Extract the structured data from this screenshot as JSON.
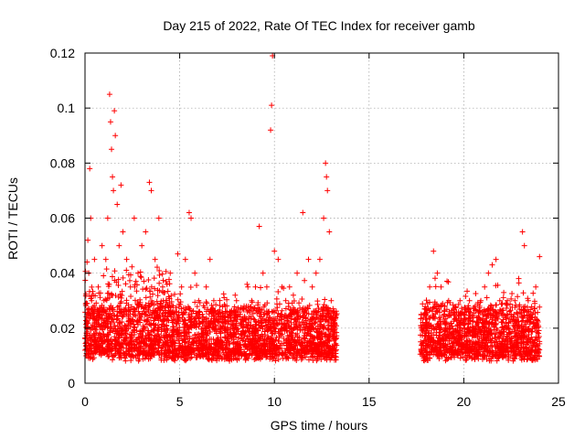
{
  "chart_data": {
    "type": "scatter",
    "title": "Day 215 of 2022, Rate Of TEC Index for receiver gamb",
    "xlabel": "GPS time / hours",
    "ylabel": "ROTI / TECUs",
    "xlim": [
      0,
      25
    ],
    "ylim": [
      0,
      0.12
    ],
    "xticks": [
      0,
      5,
      10,
      15,
      20,
      25
    ],
    "xtick_labels": [
      "0",
      "5",
      "10",
      "15",
      "20",
      "25"
    ],
    "yticks": [
      0,
      0.02,
      0.04,
      0.06,
      0.08,
      0.1,
      0.12
    ],
    "ytick_labels": [
      "0",
      "0.02",
      "0.04",
      "0.06",
      "0.08",
      "0.1",
      "0.12"
    ],
    "grid": true,
    "marker": "+",
    "color": "#ff0000",
    "coverage": [
      [
        0,
        13.3
      ],
      [
        17.7,
        24
      ]
    ],
    "series": [
      {
        "name": "ROTI",
        "points": [
          [
            0.0,
            0.012
          ],
          [
            0.1,
            0.018
          ],
          [
            0.15,
            0.052
          ],
          [
            0.2,
            0.04
          ],
          [
            0.25,
            0.078
          ],
          [
            0.3,
            0.06
          ],
          [
            0.35,
            0.03
          ],
          [
            0.4,
            0.02
          ],
          [
            0.5,
            0.045
          ],
          [
            0.6,
            0.015
          ],
          [
            0.7,
            0.035
          ],
          [
            0.8,
            0.025
          ],
          [
            0.9,
            0.05
          ],
          [
            1.0,
            0.03
          ],
          [
            1.1,
            0.045
          ],
          [
            1.2,
            0.06
          ],
          [
            1.3,
            0.105
          ],
          [
            1.35,
            0.095
          ],
          [
            1.4,
            0.085
          ],
          [
            1.45,
            0.075
          ],
          [
            1.5,
            0.07
          ],
          [
            1.55,
            0.099
          ],
          [
            1.6,
            0.09
          ],
          [
            1.7,
            0.065
          ],
          [
            1.8,
            0.05
          ],
          [
            1.9,
            0.072
          ],
          [
            2.0,
            0.055
          ],
          [
            2.2,
            0.045
          ],
          [
            2.4,
            0.035
          ],
          [
            2.6,
            0.06
          ],
          [
            2.8,
            0.04
          ],
          [
            3.0,
            0.05
          ],
          [
            3.2,
            0.055
          ],
          [
            3.4,
            0.073
          ],
          [
            3.5,
            0.07
          ],
          [
            3.7,
            0.045
          ],
          [
            3.9,
            0.06
          ],
          [
            4.1,
            0.035
          ],
          [
            4.3,
            0.03
          ],
          [
            4.5,
            0.04
          ],
          [
            4.7,
            0.025
          ],
          [
            4.9,
            0.047
          ],
          [
            5.1,
            0.035
          ],
          [
            5.3,
            0.045
          ],
          [
            5.5,
            0.062
          ],
          [
            5.6,
            0.06
          ],
          [
            5.8,
            0.04
          ],
          [
            6.0,
            0.03
          ],
          [
            6.2,
            0.025
          ],
          [
            6.4,
            0.035
          ],
          [
            6.6,
            0.045
          ],
          [
            6.8,
            0.03
          ],
          [
            7.0,
            0.025
          ],
          [
            7.2,
            0.02
          ],
          [
            7.4,
            0.028
          ],
          [
            7.6,
            0.025
          ],
          [
            7.8,
            0.02
          ],
          [
            8.0,
            0.03
          ],
          [
            8.2,
            0.025
          ],
          [
            8.4,
            0.028
          ],
          [
            8.6,
            0.035
          ],
          [
            8.8,
            0.03
          ],
          [
            9.0,
            0.035
          ],
          [
            9.2,
            0.057
          ],
          [
            9.4,
            0.04
          ],
          [
            9.6,
            0.035
          ],
          [
            9.8,
            0.092
          ],
          [
            9.85,
            0.101
          ],
          [
            9.9,
            0.119
          ],
          [
            10.0,
            0.048
          ],
          [
            10.2,
            0.045
          ],
          [
            10.4,
            0.035
          ],
          [
            10.6,
            0.03
          ],
          [
            10.8,
            0.035
          ],
          [
            11.0,
            0.032
          ],
          [
            11.2,
            0.04
          ],
          [
            11.5,
            0.062
          ],
          [
            11.8,
            0.045
          ],
          [
            12.0,
            0.035
          ],
          [
            12.2,
            0.04
          ],
          [
            12.4,
            0.045
          ],
          [
            12.6,
            0.06
          ],
          [
            12.7,
            0.08
          ],
          [
            12.75,
            0.075
          ],
          [
            12.8,
            0.07
          ],
          [
            12.9,
            0.055
          ],
          [
            13.0,
            0.03
          ],
          [
            13.2,
            0.02
          ],
          [
            17.8,
            0.02
          ],
          [
            18.0,
            0.025
          ],
          [
            18.2,
            0.035
          ],
          [
            18.4,
            0.048
          ],
          [
            18.6,
            0.04
          ],
          [
            18.8,
            0.035
          ],
          [
            19.0,
            0.028
          ],
          [
            19.2,
            0.03
          ],
          [
            19.5,
            0.025
          ],
          [
            19.8,
            0.03
          ],
          [
            20.0,
            0.025
          ],
          [
            20.3,
            0.03
          ],
          [
            20.6,
            0.028
          ],
          [
            20.9,
            0.03
          ],
          [
            21.1,
            0.035
          ],
          [
            21.3,
            0.04
          ],
          [
            21.5,
            0.043
          ],
          [
            21.7,
            0.045
          ],
          [
            21.9,
            0.03
          ],
          [
            22.1,
            0.025
          ],
          [
            22.3,
            0.03
          ],
          [
            22.5,
            0.025
          ],
          [
            22.7,
            0.03
          ],
          [
            22.9,
            0.038
          ],
          [
            23.1,
            0.055
          ],
          [
            23.2,
            0.05
          ],
          [
            23.4,
            0.03
          ],
          [
            23.6,
            0.025
          ],
          [
            23.8,
            0.035
          ],
          [
            24.0,
            0.046
          ]
        ]
      }
    ]
  }
}
